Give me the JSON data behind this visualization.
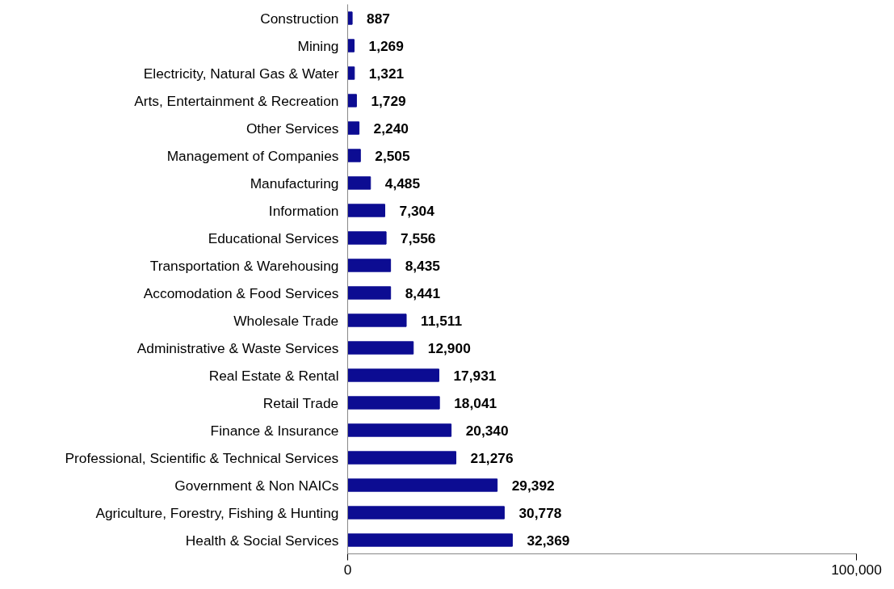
{
  "chart_data": {
    "type": "bar",
    "orientation": "horizontal",
    "categories": [
      "Construction",
      "Mining",
      "Electricity, Natural Gas & Water",
      "Arts, Entertainment & Recreation",
      "Other Services",
      "Management of Companies",
      "Manufacturing",
      "Information",
      "Educational Services",
      "Transportation & Warehousing",
      "Accomodation & Food Services",
      "Wholesale Trade",
      "Administrative & Waste Services",
      "Real Estate & Rental",
      "Retail Trade",
      "Finance & Insurance",
      "Professional, Scientific & Technical Services",
      "Government & Non NAICs",
      "Agriculture, Forestry, Fishing & Hunting",
      "Health & Social Services"
    ],
    "values": [
      887,
      1269,
      1321,
      1729,
      2240,
      2505,
      4485,
      7304,
      7556,
      8435,
      8441,
      11511,
      12900,
      17931,
      18041,
      20340,
      21276,
      29392,
      30778,
      32369
    ],
    "value_labels": [
      "887",
      "1,269",
      "1,321",
      "1,729",
      "2,240",
      "2,505",
      "4,485",
      "7,304",
      "7,556",
      "8,435",
      "8,441",
      "11,511",
      "12,900",
      "17,931",
      "18,041",
      "20,340",
      "21,276",
      "29,392",
      "30,778",
      "32,369"
    ],
    "color": "#0c0c92",
    "xlim": [
      0,
      100000
    ],
    "xticks": [
      0,
      {
        "value": 100000,
        "label": "100,000"
      }
    ],
    "grid": false
  }
}
